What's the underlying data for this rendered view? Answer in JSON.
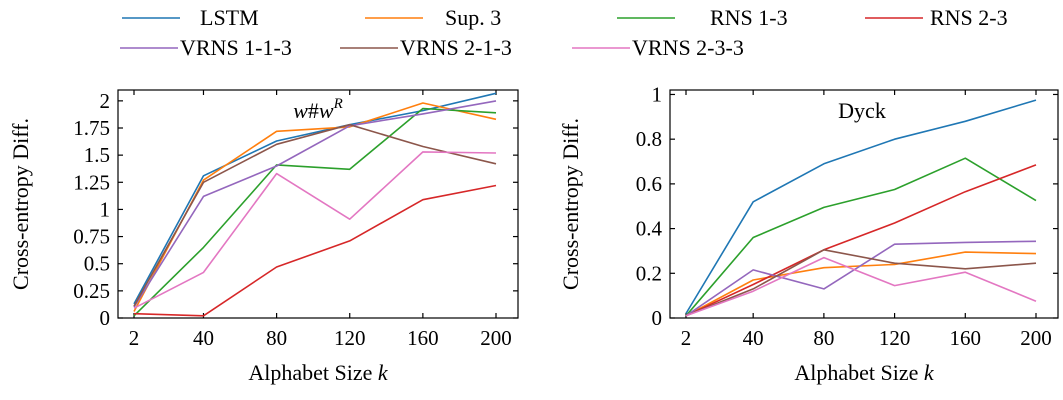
{
  "legend": [
    {
      "name": "LSTM",
      "color": "#1f77b4"
    },
    {
      "name": "Sup. 3",
      "color": "#ff7f0e"
    },
    {
      "name": "RNS 1-3",
      "color": "#2ca02c"
    },
    {
      "name": "RNS 2-3",
      "color": "#d62728"
    },
    {
      "name": "VRNS 1-1-3",
      "color": "#9467bd"
    },
    {
      "name": "VRNS 2-1-3",
      "color": "#8c564b"
    },
    {
      "name": "VRNS 2-3-3",
      "color": "#e377c2"
    }
  ],
  "chart_data": [
    {
      "type": "line",
      "title": "w#w^R",
      "xlabel": "Alphabet Size k",
      "ylabel": "Cross-entropy Diff.",
      "x": [
        2,
        40,
        80,
        120,
        160,
        200
      ],
      "x_tick_labels": [
        "2",
        "40",
        "80",
        "120",
        "160",
        "200"
      ],
      "ylim": [
        0,
        2.1
      ],
      "y_ticks": [
        0,
        0.25,
        0.5,
        0.75,
        1,
        1.25,
        1.5,
        1.75,
        2
      ],
      "y_tick_labels": [
        "0",
        "0.25",
        "0.5",
        "0.75",
        "1",
        "1.25",
        "1.5",
        "1.75",
        "2"
      ],
      "series": [
        {
          "name": "LSTM",
          "values": [
            0.13,
            1.31,
            1.63,
            1.78,
            1.91,
            2.07
          ]
        },
        {
          "name": "Sup. 3",
          "values": [
            0.06,
            1.27,
            1.72,
            1.76,
            1.98,
            1.83
          ]
        },
        {
          "name": "RNS 1-3",
          "values": [
            0.02,
            0.65,
            1.41,
            1.37,
            1.93,
            1.89
          ]
        },
        {
          "name": "RNS 2-3",
          "values": [
            0.04,
            0.02,
            0.47,
            0.71,
            1.09,
            1.22
          ]
        },
        {
          "name": "VRNS 1-1-3",
          "values": [
            0.1,
            1.12,
            1.4,
            1.77,
            1.88,
            2.0
          ]
        },
        {
          "name": "VRNS 2-1-3",
          "values": [
            0.11,
            1.25,
            1.6,
            1.78,
            1.58,
            1.42
          ]
        },
        {
          "name": "VRNS 2-3-3",
          "values": [
            0.09,
            0.42,
            1.33,
            0.91,
            1.53,
            1.52
          ]
        }
      ]
    },
    {
      "type": "line",
      "title": "Dyck",
      "xlabel": "Alphabet Size k",
      "ylabel": "Cross-entropy Diff.",
      "x": [
        2,
        40,
        80,
        120,
        160,
        200
      ],
      "x_tick_labels": [
        "2",
        "40",
        "80",
        "120",
        "160",
        "200"
      ],
      "ylim": [
        0,
        1.02
      ],
      "y_ticks": [
        0,
        0.2,
        0.4,
        0.6,
        0.8,
        1
      ],
      "y_tick_labels": [
        "0",
        "0.2",
        "0.4",
        "0.6",
        "0.8",
        "1"
      ],
      "series": [
        {
          "name": "LSTM",
          "values": [
            0.02,
            0.52,
            0.69,
            0.8,
            0.88,
            0.975
          ]
        },
        {
          "name": "Sup. 3",
          "values": [
            0.01,
            0.17,
            0.225,
            0.24,
            0.295,
            0.288
          ]
        },
        {
          "name": "RNS 1-3",
          "values": [
            0.01,
            0.36,
            0.495,
            0.575,
            0.715,
            0.525
          ]
        },
        {
          "name": "RNS 2-3",
          "values": [
            0.01,
            0.15,
            0.305,
            0.425,
            0.565,
            0.685
          ]
        },
        {
          "name": "VRNS 1-1-3",
          "values": [
            0.01,
            0.215,
            0.13,
            0.33,
            0.338,
            0.343
          ]
        },
        {
          "name": "VRNS 2-1-3",
          "values": [
            0.01,
            0.13,
            0.305,
            0.245,
            0.22,
            0.245
          ]
        },
        {
          "name": "VRNS 2-3-3",
          "values": [
            0.01,
            0.12,
            0.27,
            0.145,
            0.205,
            0.075
          ]
        }
      ]
    }
  ]
}
